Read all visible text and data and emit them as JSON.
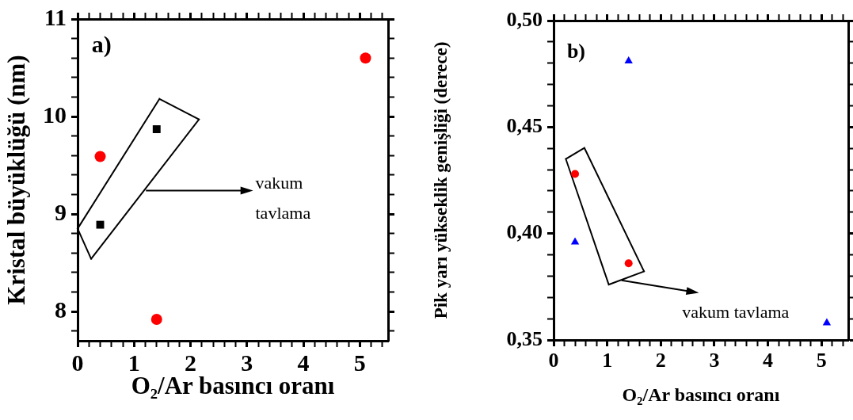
{
  "chart_data": [
    {
      "type": "scatter",
      "xlabel": "O₂/Ar basıncı oranı",
      "ylabel": "Kristal büyüklüğü (nm)",
      "xlim": [
        0,
        5.5
      ],
      "xticks": [
        0,
        {
          "value": 0.2,
          "label": null
        },
        {
          "value": 0.4,
          "label": null
        },
        {
          "value": 0.6,
          "label": null
        },
        {
          "value": 0.8,
          "label": null
        },
        1,
        {
          "value": 1.2,
          "label": null
        },
        {
          "value": 1.4,
          "label": null
        },
        {
          "value": 1.6,
          "label": null
        },
        {
          "value": 1.8,
          "label": null
        },
        2,
        {
          "value": 2.2,
          "label": null
        },
        {
          "value": 2.4,
          "label": null
        },
        {
          "value": 2.6,
          "label": null
        },
        {
          "value": 2.8,
          "label": null
        },
        3,
        {
          "value": 3.2,
          "label": null
        },
        {
          "value": 3.4,
          "label": null
        },
        {
          "value": 3.6,
          "label": null
        },
        {
          "value": 3.8,
          "label": null
        },
        4,
        {
          "value": 4.2,
          "label": null
        },
        {
          "value": 4.4,
          "label": null
        },
        {
          "value": 4.6,
          "label": null
        },
        {
          "value": 4.8,
          "label": null
        },
        5,
        {
          "value": 5.2,
          "label": null
        },
        {
          "value": 5.4,
          "label": null
        }
      ],
      "ylim": [
        7.7,
        11
      ],
      "yticks": [
        {
          "value": 7.8,
          "label": null
        },
        8,
        {
          "value": 8.2,
          "label": null
        },
        {
          "value": 8.4,
          "label": null
        },
        {
          "value": 8.6,
          "label": null
        },
        {
          "value": 8.8,
          "label": null
        },
        9,
        {
          "value": 9.2,
          "label": null
        },
        {
          "value": 9.4,
          "label": null
        },
        {
          "value": 9.6,
          "label": null
        },
        {
          "value": 9.8,
          "label": null
        },
        10,
        {
          "value": 10.2,
          "label": null
        },
        {
          "value": 10.4,
          "label": null
        },
        {
          "value": 10.6,
          "label": null
        },
        {
          "value": 10.8,
          "label": null
        },
        11
      ],
      "grid": false,
      "legend": false,
      "annotations": [
        "a)",
        "vakum tavlama"
      ],
      "series": [
        {
          "color": "#ff0000",
          "marker": "circle",
          "x": [
            0.4,
            1.4,
            5.1
          ],
          "values": [
            9.59,
            7.92,
            10.6
          ]
        },
        {
          "color": "#000000",
          "marker": "square",
          "x": [
            0.4,
            1.4
          ],
          "values": [
            8.89,
            9.87
          ]
        }
      ]
    },
    {
      "type": "scatter",
      "xlabel": "O₂/Ar basıncı oranı",
      "ylabel": "Pik yarı yükseklik genişliği (derece)",
      "xlim": [
        0,
        5.5
      ],
      "xticks": [
        0,
        {
          "value": 0.2,
          "label": null
        },
        {
          "value": 0.4,
          "label": null
        },
        {
          "value": 0.6,
          "label": null
        },
        {
          "value": 0.8,
          "label": null
        },
        1,
        {
          "value": 1.2,
          "label": null
        },
        {
          "value": 1.4,
          "label": null
        },
        {
          "value": 1.6,
          "label": null
        },
        {
          "value": 1.8,
          "label": null
        },
        2,
        {
          "value": 2.2,
          "label": null
        },
        {
          "value": 2.4,
          "label": null
        },
        {
          "value": 2.6,
          "label": null
        },
        {
          "value": 2.8,
          "label": null
        },
        3,
        {
          "value": 3.2,
          "label": null
        },
        {
          "value": 3.4,
          "label": null
        },
        {
          "value": 3.6,
          "label": null
        },
        {
          "value": 3.8,
          "label": null
        },
        4,
        {
          "value": 4.2,
          "label": null
        },
        {
          "value": 4.4,
          "label": null
        },
        {
          "value": 4.6,
          "label": null
        },
        {
          "value": 4.8,
          "label": null
        },
        5,
        {
          "value": 5.2,
          "label": null
        },
        {
          "value": 5.4,
          "label": null
        }
      ],
      "ylim": [
        0.35,
        0.5
      ],
      "yticks": [
        {
          "value": 0.35,
          "label": "0,35"
        },
        {
          "value": 0.36,
          "label": null
        },
        {
          "value": 0.37,
          "label": null
        },
        {
          "value": 0.38,
          "label": null
        },
        {
          "value": 0.39,
          "label": null
        },
        {
          "value": 0.4,
          "label": "0,40"
        },
        {
          "value": 0.41,
          "label": null
        },
        {
          "value": 0.42,
          "label": null
        },
        {
          "value": 0.43,
          "label": null
        },
        {
          "value": 0.44,
          "label": null
        },
        {
          "value": 0.45,
          "label": "0,45"
        },
        {
          "value": 0.46,
          "label": null
        },
        {
          "value": 0.47,
          "label": null
        },
        {
          "value": 0.48,
          "label": null
        },
        {
          "value": 0.49,
          "label": null
        },
        {
          "value": 0.5,
          "label": "0,50"
        }
      ],
      "grid": false,
      "legend": false,
      "annotations": [
        "b)",
        "vakum tavlama"
      ],
      "series": [
        {
          "color": "#0000ff",
          "marker": "triangle",
          "x": [
            0.4,
            1.4,
            5.1
          ],
          "values": [
            0.396,
            0.481,
            0.358
          ]
        },
        {
          "color": "#ff0000",
          "marker": "circle",
          "x": [
            0.4,
            1.4
          ],
          "values": [
            0.428,
            0.386
          ]
        }
      ]
    }
  ]
}
